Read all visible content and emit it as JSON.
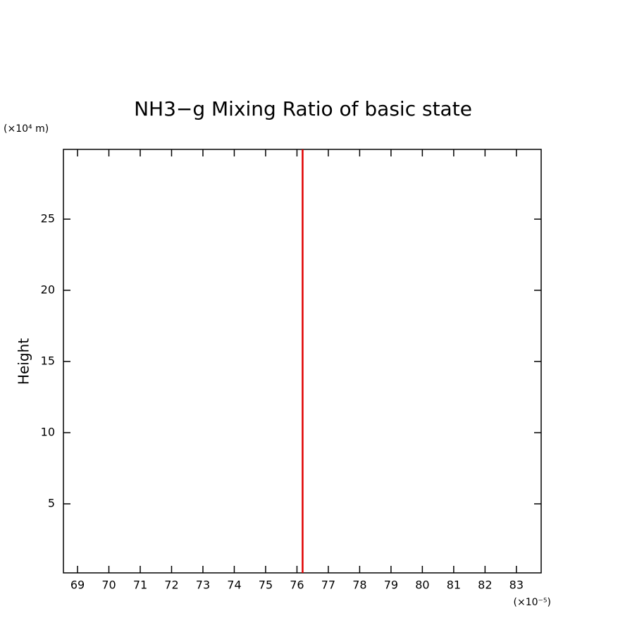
{
  "chart_data": {
    "type": "line",
    "title": "NH3−g Mixing Ratio of basic state",
    "y_label": "Height",
    "y_unit": "(×10⁴ m)",
    "x_unit": "(×10⁻⁵)",
    "x": [
      76.18,
      76.18
    ],
    "series": [
      {
        "color": "#e00000",
        "values": [
          0.15,
          29.9
        ]
      }
    ],
    "xlim": [
      68.55,
      83.79
    ],
    "ylim": [
      0.15,
      29.9
    ],
    "xticks": [
      69,
      70,
      71,
      72,
      73,
      74,
      75,
      76,
      77,
      78,
      79,
      80,
      81,
      82,
      83
    ],
    "yticks": [
      5,
      10,
      15,
      20,
      25
    ],
    "grid": false
  }
}
